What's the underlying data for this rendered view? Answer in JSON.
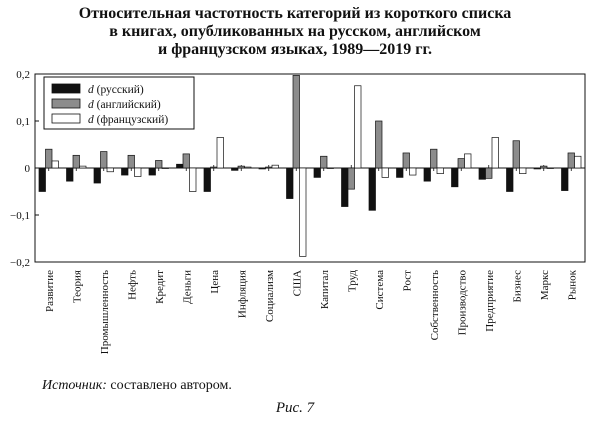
{
  "figure": {
    "title_lines": [
      "Относительная частотность категорий из короткого списка",
      "в книгах, опубликованных на русском, английском",
      "и французском языках, 1989—2019 гг."
    ],
    "source_label": "Источник:",
    "source_text": " составлено автором.",
    "caption": "Рис. 7"
  },
  "chart_data": {
    "type": "bar",
    "title": "Относительная частотность категорий из короткого списка в книгах, опубликованных на русском, английском и французском языках, 1989—2019 гг.",
    "categories": [
      "Развитие",
      "Теория",
      "Промышленность",
      "Нефть",
      "Кредит",
      "Деньги",
      "Цена",
      "Инфляция",
      "Социализм",
      "США",
      "Капитал",
      "Труд",
      "Система",
      "Рост",
      "Собственность",
      "Производство",
      "Предприятие",
      "Бизнес",
      "Маркс",
      "Рынок"
    ],
    "series": [
      {
        "name": "(русский)",
        "color": "#111111",
        "values": [
          -0.05,
          -0.028,
          -0.032,
          -0.015,
          -0.015,
          0.008,
          -0.05,
          -0.005,
          -0.002,
          -0.065,
          -0.02,
          -0.082,
          -0.09,
          -0.02,
          -0.028,
          -0.04,
          -0.024,
          -0.05,
          -0.002,
          -0.048
        ]
      },
      {
        "name": "(английский)",
        "color": "#8c8c8c",
        "values": [
          0.04,
          0.027,
          0.035,
          0.027,
          0.016,
          0.03,
          0.002,
          0.004,
          0.002,
          0.197,
          0.025,
          -0.045,
          0.1,
          0.032,
          0.04,
          0.02,
          -0.022,
          0.058,
          0.004,
          0.032
        ]
      },
      {
        "name": "(французский)",
        "color": "#ffffff",
        "values": [
          0.015,
          0.004,
          -0.008,
          -0.018,
          0.0,
          -0.05,
          0.065,
          0.002,
          0.006,
          -0.188,
          0.0,
          0.175,
          -0.02,
          -0.015,
          -0.012,
          0.03,
          0.065,
          -0.012,
          0.0,
          0.025
        ]
      }
    ],
    "legend_symbol": "d",
    "ylim": [
      -0.2,
      0.2
    ],
    "yticks": [
      0.2,
      0.1,
      0,
      -0.1,
      -0.2
    ],
    "ytick_labels": [
      "0,2",
      "0,1",
      "0",
      "−0,1",
      "−0,2"
    ],
    "grid": false,
    "legend_position": "top-left",
    "xlabel": "",
    "ylabel": ""
  }
}
